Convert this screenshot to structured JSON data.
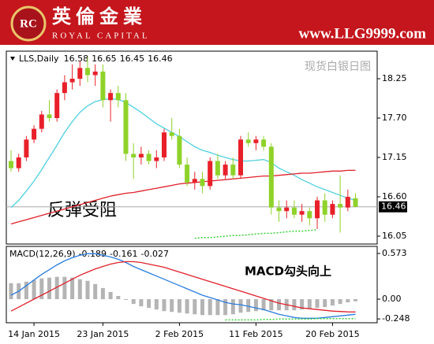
{
  "header": {
    "logo": "RC",
    "name_cn": "英倫金業",
    "name_en": "ROYAL CAPITAL",
    "url": "www.LLG9999.com"
  },
  "chart_data": [
    {
      "type": "candlestick",
      "title": "LLS,Daily",
      "info_values": [
        16.58,
        16.65,
        16.45,
        16.46
      ],
      "subtitle": "现货白银日图",
      "annotation": "反弹受阻",
      "up_color": "#e8202a",
      "down_color": "#8fd22a",
      "open": [
        17.1,
        17.0,
        17.15,
        17.4,
        17.55,
        17.75,
        17.7,
        18.05,
        18.2,
        18.25,
        18.4,
        18.3,
        18.35,
        17.95,
        18.05,
        17.95,
        17.2,
        17.15,
        17.2,
        17.1,
        17.15,
        17.5,
        17.45,
        17.05,
        16.8,
        16.85,
        16.75,
        17.1,
        16.9,
        17.05,
        16.9,
        17.4,
        17.35,
        17.4,
        17.3,
        16.45,
        16.4,
        16.45,
        16.35,
        16.4,
        16.3,
        16.55,
        16.35,
        16.5,
        16.45,
        16.58
      ],
      "high": [
        17.25,
        17.2,
        17.45,
        17.6,
        17.8,
        17.95,
        18.1,
        18.3,
        18.45,
        18.5,
        18.55,
        18.45,
        18.45,
        18.1,
        18.15,
        18.05,
        17.35,
        17.3,
        17.25,
        17.25,
        17.55,
        17.7,
        17.55,
        17.15,
        16.95,
        16.95,
        17.15,
        17.2,
        17.1,
        17.15,
        17.45,
        17.5,
        17.45,
        17.45,
        17.35,
        16.55,
        16.55,
        16.55,
        16.5,
        16.45,
        16.6,
        16.65,
        16.55,
        16.9,
        16.7,
        16.65
      ],
      "low": [
        16.95,
        16.95,
        17.1,
        17.35,
        17.5,
        17.65,
        17.65,
        17.95,
        18.1,
        18.15,
        18.2,
        18.15,
        17.85,
        17.65,
        17.85,
        17.1,
        16.85,
        17.05,
        17.05,
        17.0,
        17.1,
        17.4,
        17.0,
        16.75,
        16.7,
        16.65,
        16.7,
        16.85,
        16.85,
        16.85,
        16.85,
        17.3,
        17.25,
        17.25,
        16.35,
        16.25,
        16.3,
        16.3,
        16.25,
        16.2,
        16.15,
        16.25,
        16.3,
        16.1,
        16.4,
        16.45
      ],
      "close": [
        17.0,
        17.15,
        17.4,
        17.55,
        17.75,
        17.7,
        18.05,
        18.2,
        18.25,
        18.4,
        18.3,
        18.35,
        17.95,
        18.05,
        17.95,
        17.2,
        17.15,
        17.2,
        17.1,
        17.15,
        17.5,
        17.45,
        17.05,
        16.8,
        16.85,
        16.75,
        17.1,
        16.9,
        17.05,
        16.9,
        17.4,
        17.35,
        17.4,
        17.3,
        16.45,
        16.4,
        16.45,
        16.35,
        16.4,
        16.3,
        16.55,
        16.35,
        16.5,
        16.45,
        16.6,
        16.46
      ],
      "lines": [
        {
          "color": "#4fd0e0",
          "dash": false,
          "values": [
            16.45,
            16.55,
            16.68,
            16.82,
            16.98,
            17.15,
            17.32,
            17.5,
            17.65,
            17.78,
            17.87,
            17.93,
            17.96,
            17.97,
            17.96,
            17.92,
            17.85,
            17.78,
            17.7,
            17.62,
            17.56,
            17.5,
            17.44,
            17.37,
            17.3,
            17.25,
            17.22,
            17.18,
            17.15,
            17.12,
            17.1,
            17.1,
            17.11,
            17.12,
            17.08,
            17.0,
            16.95,
            16.9,
            16.84,
            16.79,
            16.74,
            16.7,
            16.66,
            16.62,
            16.58,
            16.55
          ]
        },
        {
          "color": "#e0202a",
          "dash": false,
          "values": [
            16.22,
            16.25,
            16.28,
            16.31,
            16.34,
            16.37,
            16.4,
            16.43,
            16.46,
            16.49,
            16.52,
            16.55,
            16.58,
            16.61,
            16.63,
            16.65,
            16.66,
            16.68,
            16.7,
            16.72,
            16.74,
            16.76,
            16.78,
            16.79,
            16.8,
            16.81,
            16.82,
            16.83,
            16.84,
            16.85,
            16.86,
            16.87,
            16.88,
            16.89,
            16.89,
            16.9,
            16.91,
            16.92,
            16.93,
            16.93,
            16.94,
            16.95,
            16.96,
            16.96,
            16.97,
            16.97
          ]
        },
        {
          "color": "#3ad13a",
          "dash": true,
          "values": [
            null,
            null,
            null,
            null,
            null,
            null,
            null,
            null,
            null,
            null,
            null,
            null,
            null,
            null,
            null,
            null,
            null,
            null,
            null,
            null,
            null,
            null,
            null,
            null,
            16.02,
            16.03,
            16.03,
            16.04,
            16.05,
            16.06,
            16.06,
            16.07,
            16.08,
            16.09,
            16.09,
            16.1,
            16.11,
            16.12,
            16.12,
            16.13,
            16.14,
            null,
            null,
            null,
            null,
            null
          ]
        }
      ],
      "last_price": 16.46,
      "ylim": [
        15.94,
        18.635
      ],
      "yticks": [
        18.25,
        {
          "value": 17.7,
          "label": "17.70"
        },
        17.15,
        {
          "value": 16.6,
          "label": "16.60"
        },
        16.05
      ]
    },
    {
      "type": "macd",
      "title": "MACD(12,26,9)",
      "info_values": [
        -0.189,
        -0.161,
        -0.027
      ],
      "annotation": "MACD勾头向上",
      "categories": [
        null,
        null,
        null,
        "14 Jan 2015",
        null,
        null,
        null,
        null,
        null,
        null,
        null,
        null,
        "23 Jan 2015",
        null,
        null,
        null,
        null,
        null,
        null,
        null,
        null,
        null,
        "2 Feb 2015",
        null,
        null,
        null,
        null,
        null,
        null,
        null,
        null,
        null,
        "11 Feb 2015",
        null,
        null,
        null,
        null,
        null,
        null,
        null,
        null,
        null,
        "20 Feb 2015",
        null,
        null,
        null
      ],
      "histogram": {
        "color": "#b4b4b4",
        "values": [
          0.2,
          0.2,
          0.22,
          0.24,
          0.26,
          0.27,
          0.28,
          0.28,
          0.27,
          0.25,
          0.23,
          0.19,
          0.14,
          0.09,
          0.04,
          -0.01,
          -0.06,
          -0.09,
          -0.11,
          -0.13,
          -0.15,
          -0.16,
          -0.17,
          -0.18,
          -0.19,
          -0.2,
          -0.2,
          -0.2,
          -0.2,
          -0.19,
          -0.17,
          -0.16,
          -0.15,
          -0.14,
          -0.14,
          -0.14,
          -0.14,
          -0.14,
          -0.13,
          -0.12,
          -0.11,
          -0.1,
          -0.08,
          -0.06,
          -0.04,
          -0.027
        ]
      },
      "lines": [
        {
          "color": "#2a7de0",
          "dash": false,
          "values": [
            0.05,
            0.1,
            0.17,
            0.24,
            0.31,
            0.37,
            0.43,
            0.48,
            0.52,
            0.55,
            0.57,
            0.57,
            0.55,
            0.53,
            0.5,
            0.46,
            0.41,
            0.37,
            0.33,
            0.29,
            0.25,
            0.21,
            0.17,
            0.13,
            0.09,
            0.05,
            0.02,
            -0.01,
            -0.04,
            -0.06,
            -0.07,
            -0.09,
            -0.11,
            -0.13,
            -0.16,
            -0.19,
            -0.21,
            -0.23,
            -0.24,
            -0.24,
            -0.24,
            -0.23,
            -0.22,
            -0.21,
            -0.2,
            -0.189
          ]
        },
        {
          "color": "#e0202a",
          "dash": false,
          "values": [
            -0.15,
            -0.1,
            -0.05,
            0.0,
            0.05,
            0.1,
            0.15,
            0.2,
            0.25,
            0.3,
            0.34,
            0.38,
            0.41,
            0.44,
            0.46,
            0.47,
            0.47,
            0.46,
            0.44,
            0.42,
            0.4,
            0.37,
            0.34,
            0.31,
            0.28,
            0.25,
            0.22,
            0.19,
            0.16,
            0.13,
            0.1,
            0.07,
            0.04,
            0.01,
            -0.02,
            -0.05,
            -0.07,
            -0.09,
            -0.11,
            -0.12,
            -0.13,
            -0.14,
            -0.15,
            -0.155,
            -0.16,
            -0.161
          ]
        },
        {
          "color": "#3ad13a",
          "dash": true,
          "values": [
            null,
            null,
            null,
            null,
            null,
            null,
            null,
            null,
            null,
            null,
            null,
            null,
            null,
            null,
            null,
            null,
            null,
            null,
            null,
            null,
            null,
            null,
            null,
            null,
            null,
            null,
            null,
            null,
            -0.26,
            -0.26,
            -0.26,
            -0.26,
            -0.26,
            -0.255,
            -0.255,
            -0.25,
            -0.25,
            -0.25,
            -0.25,
            -0.25,
            -0.245,
            -0.245,
            -0.245,
            -0.245,
            -0.245,
            -0.245
          ]
        }
      ],
      "ylim": [
        -0.296,
        0.662
      ],
      "yticks": [
        0.573,
        {
          "value": 0,
          "label": "0.00"
        },
        -0.248
      ]
    }
  ]
}
